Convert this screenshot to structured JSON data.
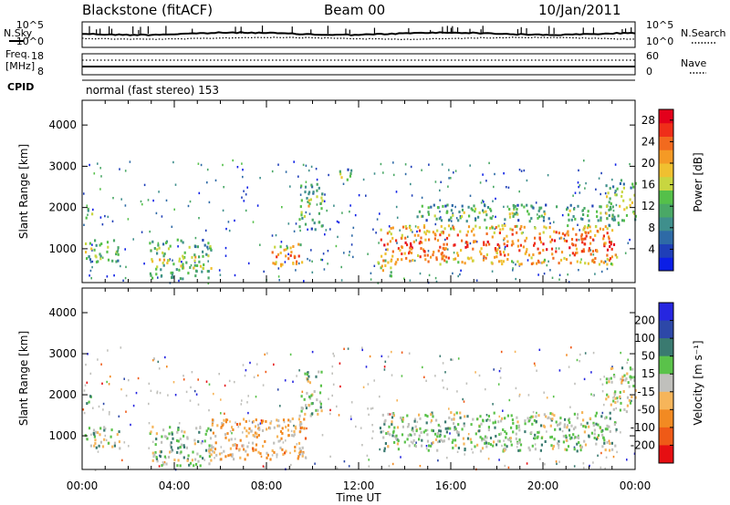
{
  "header": {
    "station": "Blackstone (fitACF)",
    "beam": "Beam 00",
    "date": "10/Jan/2011"
  },
  "top_panels": {
    "nsky_label": "N.Sky",
    "nsearch_label": "N.Search",
    "noise_ticks": [
      "10^5",
      "10^0"
    ],
    "freq_label": "Freq.",
    "freq_unit": "[MHz]",
    "freq_ticks": [
      "18",
      "8"
    ],
    "nave_label": "Nave",
    "nave_ticks": [
      "60",
      "0"
    ],
    "cpid_label": "CPID",
    "cpid_text": "normal (fast stereo) 153"
  },
  "colors": {
    "power": [
      "#0b1ee6",
      "#1f3fb8",
      "#2e6aa6",
      "#3f8f8c",
      "#4aa866",
      "#55c04a",
      "#c8d640",
      "#f0c030",
      "#f59a25",
      "#f26a1e",
      "#ef2e19",
      "#e3001b"
    ],
    "velocity": [
      "#2626e0",
      "#2d48a8",
      "#3a7a70",
      "#5ac24a",
      "#c0c0bc",
      "#f6b55a",
      "#f28a22",
      "#ef5a17",
      "#e60f12"
    ]
  },
  "chart_data": [
    {
      "type": "heatmap",
      "quantity": "Power",
      "xlabel": "Time UT",
      "ylabel": "Slant Range [km]",
      "x_ticks": [
        "00:00",
        "04:00",
        "08:00",
        "12:00",
        "16:00",
        "20:00",
        "00:00"
      ],
      "y_ticks": [
        1000,
        2000,
        3000,
        4000
      ],
      "xlim_hours": [
        0,
        24
      ],
      "ylim_km": [
        180,
        4600
      ],
      "colorbar": {
        "label": "Power [dB]",
        "ticks": [
          4,
          8,
          12,
          16,
          20,
          24,
          28
        ],
        "range": [
          0,
          30
        ]
      },
      "features": [
        {
          "t0": 0.1,
          "t1": 0.5,
          "r0": 1780,
          "r1": 2000,
          "level": 0.35
        },
        {
          "t0": 0.1,
          "t1": 1.6,
          "r0": 700,
          "r1": 1250,
          "level": 0.3
        },
        {
          "t0": 2.9,
          "t1": 5.6,
          "r0": 300,
          "r1": 1250,
          "level": 0.3
        },
        {
          "t0": 8.2,
          "t1": 9.7,
          "r0": 600,
          "r1": 1150,
          "level": 0.55
        },
        {
          "t0": 9.4,
          "t1": 10.4,
          "r0": 1500,
          "r1": 2600,
          "level": 0.3
        },
        {
          "t0": 11.1,
          "t1": 11.7,
          "r0": 2600,
          "r1": 2950,
          "level": 0.25
        },
        {
          "t0": 12.8,
          "t1": 13.4,
          "r0": 300,
          "r1": 800,
          "level": 0.35
        },
        {
          "t0": 12.9,
          "t1": 23.2,
          "r0": 650,
          "r1": 1600,
          "level": 0.6
        },
        {
          "t0": 14.5,
          "t1": 22.5,
          "r0": 1700,
          "r1": 2100,
          "level": 0.25
        },
        {
          "t0": 22.7,
          "t1": 24.0,
          "r0": 1600,
          "r1": 2700,
          "level": 0.3
        }
      ]
    },
    {
      "type": "heatmap",
      "quantity": "Velocity",
      "xlabel": "Time UT",
      "ylabel": "Slant Range [km]",
      "x_ticks": [
        "00:00",
        "04:00",
        "08:00",
        "12:00",
        "16:00",
        "20:00",
        "00:00"
      ],
      "y_ticks": [
        1000,
        2000,
        3000,
        4000
      ],
      "xlim_hours": [
        0,
        24
      ],
      "ylim_km": [
        180,
        4600
      ],
      "colorbar": {
        "label": "Velocity [m s⁻¹]",
        "ticks": [
          "200",
          "100",
          "50",
          "15",
          "-15",
          "-50",
          "-100",
          "-200"
        ],
        "range": [
          -250,
          250
        ]
      },
      "features": [
        {
          "t0": 0.1,
          "t1": 0.5,
          "r0": 1780,
          "r1": 2000,
          "level": 0.45
        },
        {
          "t0": 0.1,
          "t1": 1.6,
          "r0": 700,
          "r1": 1250,
          "level": 0.45
        },
        {
          "t0": 2.9,
          "t1": 5.6,
          "r0": 300,
          "r1": 1250,
          "level": 0.45
        },
        {
          "t0": 5.5,
          "t1": 9.7,
          "r0": 450,
          "r1": 1450,
          "level": 0.62
        },
        {
          "t0": 9.4,
          "t1": 10.4,
          "r0": 1500,
          "r1": 2600,
          "level": 0.45
        },
        {
          "t0": 12.9,
          "t1": 23.2,
          "r0": 650,
          "r1": 1600,
          "level": 0.45
        },
        {
          "t0": 22.7,
          "t1": 24.0,
          "r0": 1600,
          "r1": 2700,
          "level": 0.5
        }
      ]
    }
  ]
}
